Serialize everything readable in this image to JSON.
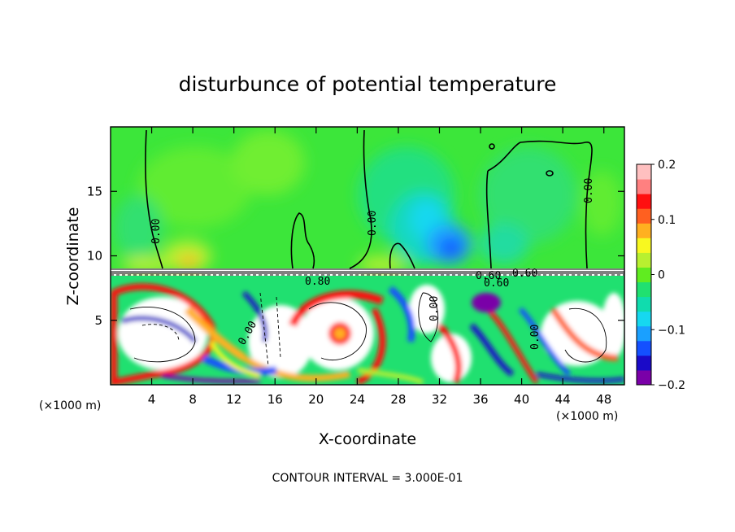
{
  "chart_data": {
    "type": "heatmap",
    "title": "disturbunce of potential temperature",
    "xlabel": "X-coordinate",
    "ylabel": "Z-coordinate",
    "x_unit": "(×1000 m)",
    "xlim": [
      0,
      50
    ],
    "ylim": [
      0,
      20
    ],
    "x_ticks": [
      4,
      8,
      12,
      16,
      20,
      24,
      28,
      32,
      36,
      40,
      44,
      48
    ],
    "y_ticks": [
      5,
      10,
      15
    ],
    "colorbar": {
      "min": -0.2,
      "max": 0.2,
      "ticks": [
        0.2,
        0.1,
        0,
        -0.1,
        -0.2
      ],
      "tick_labels": [
        "0.2",
        "0.1",
        "0",
        "−0.1",
        "−0.2"
      ],
      "colors": [
        "#7a00a8",
        "#1a0ac8",
        "#1450ff",
        "#1aa0ff",
        "#16d8f0",
        "#10dcae",
        "#20e070",
        "#60ec20",
        "#b8f030",
        "#f8f820",
        "#ffb020",
        "#ff6020",
        "#ff1010",
        "#ff8080",
        "#ffc0c0"
      ]
    },
    "contour_labels": [
      "0.00",
      "0.00",
      "0.00",
      "0.00",
      "0.80",
      "0.60",
      "0.60",
      "0.60",
      "0.00",
      "0.00",
      "0.00",
      "0.00"
    ],
    "contour_interval_text": "CONTOUR INTERVAL = 3.000E-01",
    "description_regions": {
      "upper_field": "near-zero disturbance (greens), negative cyan-blue plume near x=32, z=9-14",
      "inversion_z": 9,
      "lower_field": "strong turbulent mixing with values saturating beyond ±0.2"
    }
  }
}
